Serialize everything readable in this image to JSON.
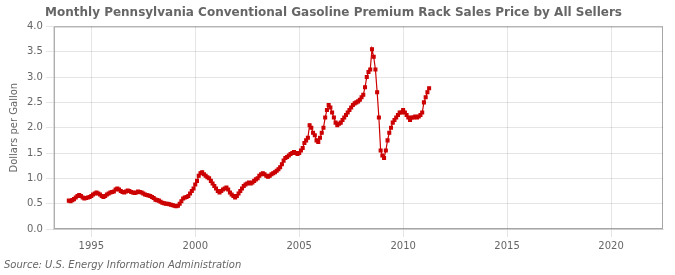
{
  "chart_data": {
    "type": "line",
    "title": "Monthly Pennsylvania Conventional Gasoline Premium Rack Sales Price by All Sellers",
    "ylabel": "Dollars per Gallon",
    "source": "Source: U.S. Energy Information Administration",
    "color": "#cc0000",
    "marker": "square",
    "line_style": "solid",
    "grid": true,
    "xlim": [
      1993.2,
      2022.5
    ],
    "xticks": [
      1995,
      2000,
      2005,
      2010,
      2015,
      2020
    ],
    "ylim": [
      0.0,
      4.0
    ],
    "yticks": [
      {
        "value": 0.0,
        "label": "0.0"
      },
      0.5,
      {
        "value": 1.0,
        "label": "1.0"
      },
      1.5,
      {
        "value": 2.0,
        "label": "2.0"
      },
      2.5,
      {
        "value": 3.0,
        "label": "3.0"
      },
      3.5,
      {
        "value": 4.0,
        "label": "4.0"
      }
    ],
    "x": [
      1993.917,
      1994.0,
      1994.083,
      1994.167,
      1994.25,
      1994.333,
      1994.417,
      1994.5,
      1994.583,
      1994.667,
      1994.75,
      1994.833,
      1994.917,
      1995.0,
      1995.083,
      1995.167,
      1995.25,
      1995.333,
      1995.417,
      1995.5,
      1995.583,
      1995.667,
      1995.75,
      1995.833,
      1995.917,
      1996.0,
      1996.083,
      1996.167,
      1996.25,
      1996.333,
      1996.417,
      1996.5,
      1996.583,
      1996.667,
      1996.75,
      1996.833,
      1996.917,
      1997.0,
      1997.083,
      1997.167,
      1997.25,
      1997.333,
      1997.417,
      1997.5,
      1997.583,
      1997.667,
      1997.75,
      1997.833,
      1997.917,
      1998.0,
      1998.083,
      1998.167,
      1998.25,
      1998.333,
      1998.417,
      1998.5,
      1998.583,
      1998.667,
      1998.75,
      1998.833,
      1998.917,
      1999.0,
      1999.083,
      1999.167,
      1999.25,
      1999.333,
      1999.417,
      1999.5,
      1999.583,
      1999.667,
      1999.75,
      1999.833,
      1999.917,
      2000.0,
      2000.083,
      2000.167,
      2000.25,
      2000.333,
      2000.417,
      2000.5,
      2000.583,
      2000.667,
      2000.75,
      2000.833,
      2000.917,
      2001.0,
      2001.083,
      2001.167,
      2001.25,
      2001.333,
      2001.417,
      2001.5,
      2001.583,
      2001.667,
      2001.75,
      2001.833,
      2001.917,
      2002.0,
      2002.083,
      2002.167,
      2002.25,
      2002.333,
      2002.417,
      2002.5,
      2002.583,
      2002.667,
      2002.75,
      2002.833,
      2002.917,
      2003.0,
      2003.083,
      2003.167,
      2003.25,
      2003.333,
      2003.417,
      2003.5,
      2003.583,
      2003.667,
      2003.75,
      2003.833,
      2003.917,
      2004.0,
      2004.083,
      2004.167,
      2004.25,
      2004.333,
      2004.417,
      2004.5,
      2004.583,
      2004.667,
      2004.75,
      2004.833,
      2004.917,
      2005.0,
      2005.083,
      2005.167,
      2005.25,
      2005.333,
      2005.417,
      2005.5,
      2005.583,
      2005.667,
      2005.75,
      2005.833,
      2005.917,
      2006.0,
      2006.083,
      2006.167,
      2006.25,
      2006.333,
      2006.417,
      2006.5,
      2006.583,
      2006.667,
      2006.75,
      2006.833,
      2006.917,
      2007.0,
      2007.083,
      2007.167,
      2007.25,
      2007.333,
      2007.417,
      2007.5,
      2007.583,
      2007.667,
      2007.75,
      2007.833,
      2007.917,
      2008.0,
      2008.083,
      2008.167,
      2008.25,
      2008.333,
      2008.417,
      2008.5,
      2008.583,
      2008.667,
      2008.75,
      2008.833,
      2008.917,
      2009.0,
      2009.083,
      2009.167,
      2009.25,
      2009.333,
      2009.417,
      2009.5,
      2009.583,
      2009.667,
      2009.75,
      2009.833,
      2009.917,
      2010.0,
      2010.083,
      2010.167,
      2010.25,
      2010.333,
      2010.417,
      2010.5,
      2010.583,
      2010.667,
      2010.75,
      2010.833,
      2010.917,
      2011.0,
      2011.083,
      2011.167,
      2011.25
    ],
    "values": [
      0.56,
      0.55,
      0.57,
      0.59,
      0.62,
      0.65,
      0.67,
      0.65,
      0.62,
      0.6,
      0.61,
      0.62,
      0.63,
      0.65,
      0.68,
      0.7,
      0.72,
      0.7,
      0.68,
      0.65,
      0.63,
      0.65,
      0.68,
      0.7,
      0.72,
      0.73,
      0.74,
      0.78,
      0.8,
      0.78,
      0.75,
      0.73,
      0.72,
      0.74,
      0.76,
      0.75,
      0.73,
      0.72,
      0.71,
      0.72,
      0.74,
      0.73,
      0.72,
      0.7,
      0.68,
      0.67,
      0.66,
      0.65,
      0.63,
      0.61,
      0.58,
      0.57,
      0.56,
      0.54,
      0.52,
      0.51,
      0.5,
      0.5,
      0.49,
      0.48,
      0.47,
      0.46,
      0.45,
      0.46,
      0.5,
      0.55,
      0.6,
      0.62,
      0.63,
      0.65,
      0.7,
      0.75,
      0.8,
      0.88,
      0.95,
      1.05,
      1.1,
      1.12,
      1.08,
      1.05,
      1.02,
      1.0,
      0.95,
      0.9,
      0.85,
      0.8,
      0.75,
      0.72,
      0.75,
      0.78,
      0.8,
      0.82,
      0.78,
      0.72,
      0.68,
      0.65,
      0.62,
      0.65,
      0.7,
      0.75,
      0.8,
      0.85,
      0.88,
      0.9,
      0.92,
      0.9,
      0.92,
      0.95,
      0.98,
      1.0,
      1.05,
      1.08,
      1.1,
      1.08,
      1.05,
      1.03,
      1.05,
      1.08,
      1.1,
      1.12,
      1.15,
      1.18,
      1.22,
      1.28,
      1.35,
      1.4,
      1.42,
      1.45,
      1.48,
      1.5,
      1.52,
      1.5,
      1.48,
      1.5,
      1.55,
      1.6,
      1.7,
      1.75,
      1.8,
      2.05,
      2.0,
      1.9,
      1.85,
      1.75,
      1.72,
      1.8,
      1.9,
      2.0,
      2.2,
      2.35,
      2.45,
      2.4,
      2.3,
      2.2,
      2.1,
      2.05,
      2.08,
      2.1,
      2.15,
      2.2,
      2.25,
      2.3,
      2.35,
      2.4,
      2.45,
      2.48,
      2.5,
      2.52,
      2.55,
      2.6,
      2.65,
      2.8,
      3.0,
      3.1,
      3.15,
      3.55,
      3.4,
      3.15,
      2.7,
      2.2,
      1.55,
      1.45,
      1.4,
      1.55,
      1.75,
      1.9,
      2.0,
      2.1,
      2.15,
      2.2,
      2.25,
      2.3,
      2.3,
      2.35,
      2.3,
      2.25,
      2.2,
      2.15,
      2.2,
      2.2,
      2.22,
      2.2,
      2.22,
      2.25,
      2.3,
      2.5,
      2.6,
      2.7,
      2.78
    ]
  }
}
